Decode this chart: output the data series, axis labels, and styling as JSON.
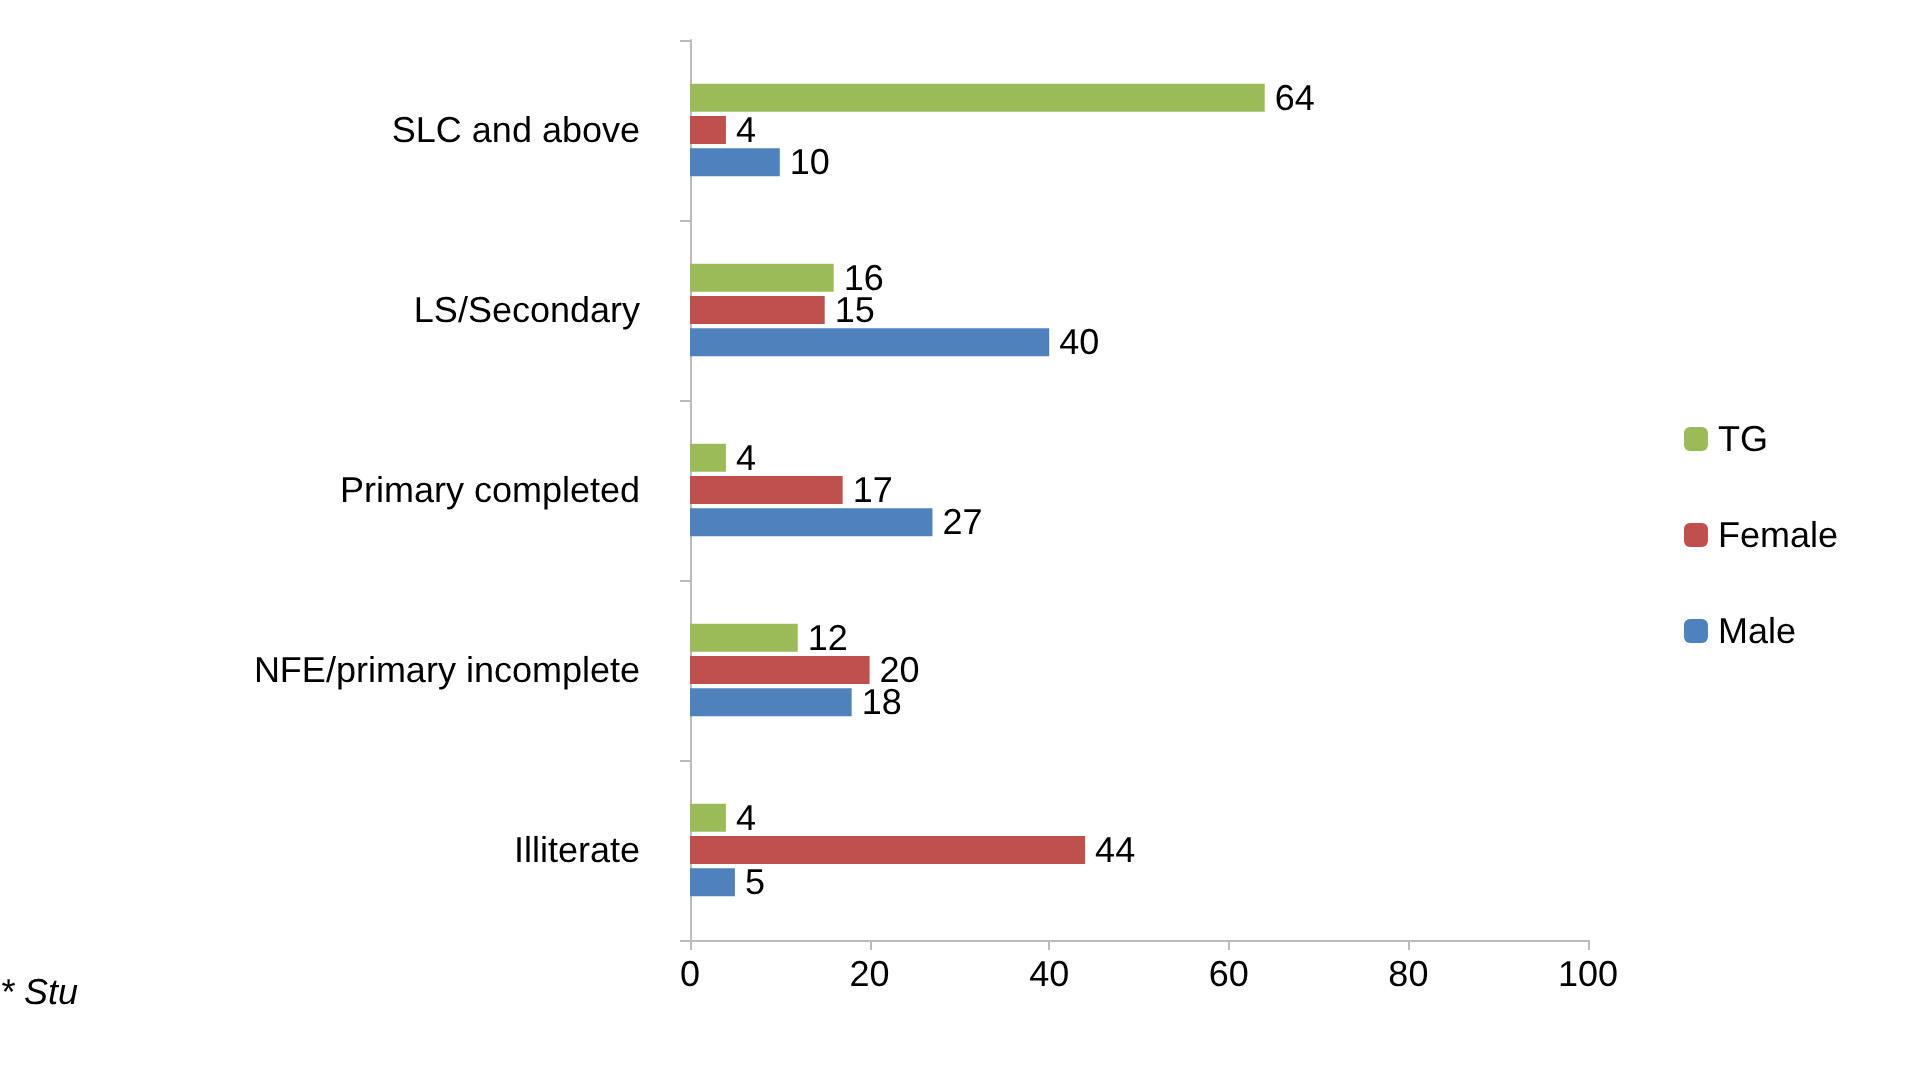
{
  "chart_data": {
    "type": "bar",
    "orientation": "horizontal",
    "categories": [
      "SLC and above",
      "LS/Secondary",
      "Primary completed",
      "NFE/primary incomplete",
      "Illiterate"
    ],
    "series": [
      {
        "name": "TG",
        "color": "#9bbb59",
        "values": [
          64,
          16,
          4,
          12,
          4
        ]
      },
      {
        "name": "Female",
        "color": "#c0504d",
        "values": [
          4,
          15,
          17,
          20,
          44
        ]
      },
      {
        "name": "Male",
        "color": "#4f81bd",
        "values": [
          10,
          40,
          27,
          18,
          5
        ]
      }
    ],
    "xlim": [
      0,
      100
    ],
    "xticks": [
      0,
      20,
      40,
      60,
      80,
      100
    ],
    "grid": false,
    "legend": "right",
    "data_labels": true,
    "annotations": [
      "* Stu"
    ]
  }
}
